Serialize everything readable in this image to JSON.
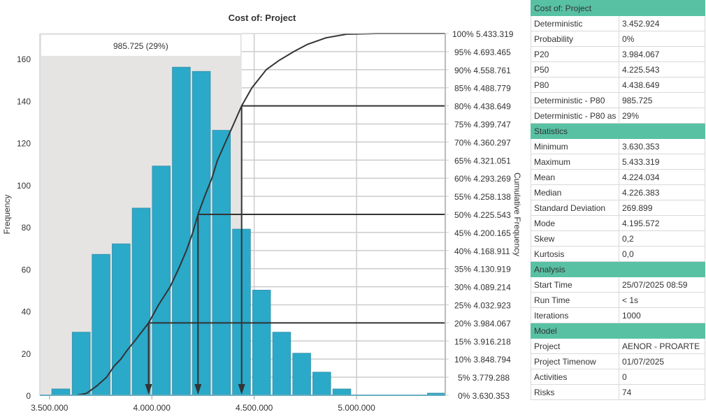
{
  "chart_data": {
    "type": "bar",
    "title": "Cost of: Project",
    "xlabel": "",
    "ylabel": "Frequency",
    "y2label": "Cumulative Frequency",
    "xlim": [
      3452924,
      5433319
    ],
    "ylim": [
      0,
      172
    ],
    "x_ticks": [
      {
        "value": 3500000,
        "label": "3.500.000"
      },
      {
        "value": 4000000,
        "label": "4.000.000"
      },
      {
        "value": 4500000,
        "label": "4.500.000"
      },
      {
        "value": 5000000,
        "label": "5.000.000"
      }
    ],
    "y_ticks": [
      0,
      20,
      40,
      60,
      80,
      100,
      120,
      140,
      160
    ],
    "bins": [
      {
        "center": 3555000,
        "count": 3
      },
      {
        "center": 3655000,
        "count": 30
      },
      {
        "center": 3752000,
        "count": 67
      },
      {
        "center": 3850000,
        "count": 72
      },
      {
        "center": 3948000,
        "count": 89
      },
      {
        "center": 4046000,
        "count": 109
      },
      {
        "center": 4144000,
        "count": 156
      },
      {
        "center": 4242000,
        "count": 154
      },
      {
        "center": 4340000,
        "count": 126
      },
      {
        "center": 4438000,
        "count": 79
      },
      {
        "center": 4536000,
        "count": 50
      },
      {
        "center": 4634000,
        "count": 30
      },
      {
        "center": 4732000,
        "count": 20
      },
      {
        "center": 4830000,
        "count": 11
      },
      {
        "center": 4928000,
        "count": 3
      },
      {
        "center": 5390000,
        "count": 1
      }
    ],
    "bin_width": 98000,
    "cumulative_ticks": [
      {
        "pct": 100,
        "label": "100% 5.433.319"
      },
      {
        "pct": 95,
        "label": "95% 4.693.465"
      },
      {
        "pct": 90,
        "label": "90% 4.558.761"
      },
      {
        "pct": 85,
        "label": "85% 4.488.779"
      },
      {
        "pct": 80,
        "label": "80% 4.438.649"
      },
      {
        "pct": 75,
        "label": "75% 4.399.747"
      },
      {
        "pct": 70,
        "label": "70% 4.360.297"
      },
      {
        "pct": 65,
        "label": "65% 4.321.051"
      },
      {
        "pct": 60,
        "label": "60% 4.293.269"
      },
      {
        "pct": 55,
        "label": "55% 4.258.138"
      },
      {
        "pct": 50,
        "label": "50% 4.225.543"
      },
      {
        "pct": 45,
        "label": "45% 4.200.165"
      },
      {
        "pct": 40,
        "label": "40% 4.168.911"
      },
      {
        "pct": 35,
        "label": "35% 4.130.919"
      },
      {
        "pct": 30,
        "label": "30% 4.089.214"
      },
      {
        "pct": 25,
        "label": "25% 4.032.923"
      },
      {
        "pct": 20,
        "label": "20% 3.984.067"
      },
      {
        "pct": 15,
        "label": "15% 3.916.218"
      },
      {
        "pct": 10,
        "label": "10% 3.848.794"
      },
      {
        "pct": 5,
        "label": "5% 3.779.288"
      },
      {
        "pct": 0,
        "label": "0% 3.630.353"
      }
    ],
    "cumulative_curve": [
      [
        3452924,
        0
      ],
      [
        3630353,
        0
      ],
      [
        3680000,
        0.5
      ],
      [
        3730000,
        2.5
      ],
      [
        3779288,
        5
      ],
      [
        3815000,
        8
      ],
      [
        3848794,
        10
      ],
      [
        3880000,
        12.5
      ],
      [
        3916218,
        15
      ],
      [
        3950000,
        17.5
      ],
      [
        3984067,
        20
      ],
      [
        4032923,
        25
      ],
      [
        4089214,
        30
      ],
      [
        4130919,
        35
      ],
      [
        4168911,
        40
      ],
      [
        4200165,
        45
      ],
      [
        4225543,
        50
      ],
      [
        4258138,
        55
      ],
      [
        4293269,
        60
      ],
      [
        4321051,
        65
      ],
      [
        4360297,
        70
      ],
      [
        4399747,
        75
      ],
      [
        4438649,
        80
      ],
      [
        4488779,
        85
      ],
      [
        4558761,
        90
      ],
      [
        4620000,
        92.5
      ],
      [
        4693465,
        95
      ],
      [
        4760000,
        97
      ],
      [
        4850000,
        98.8
      ],
      [
        4950000,
        99.8
      ],
      [
        5100000,
        100
      ],
      [
        5433319,
        100
      ]
    ],
    "markers": [
      {
        "name": "P20",
        "pct": 20,
        "value": 3984067
      },
      {
        "name": "P50",
        "pct": 50,
        "value": 4225543
      },
      {
        "name": "P80",
        "pct": 80,
        "value": 4438649
      }
    ],
    "shaded_region": {
      "from": 3452924,
      "to": 4438649,
      "label": "985.725 (29%)"
    },
    "grid": true,
    "colors": {
      "bar": "#2ba9c9",
      "bar_border": "#3a8fa6",
      "shade": "#e5e4e3",
      "line": "#333333",
      "grid": "#cccccc",
      "table_header": "#58c1a4"
    }
  },
  "table": {
    "sections": [
      {
        "title": "Cost of: Project",
        "rows": [
          {
            "key": "Deterministic",
            "value": "3.452.924"
          },
          {
            "key": "Probability",
            "value": "0%"
          },
          {
            "key": "P20",
            "value": "3.984.067"
          },
          {
            "key": "P50",
            "value": "4.225.543"
          },
          {
            "key": "P80",
            "value": "4.438.649"
          },
          {
            "key": "Deterministic - P80",
            "value": "985.725"
          },
          {
            "key": "Deterministic - P80 as",
            "value": "29%"
          }
        ]
      },
      {
        "title": "Statistics",
        "rows": [
          {
            "key": "Minimum",
            "value": "3.630.353"
          },
          {
            "key": "Maximum",
            "value": "5.433.319"
          },
          {
            "key": "Mean",
            "value": "4.224.034"
          },
          {
            "key": "Median",
            "value": "4.226.383"
          },
          {
            "key": "Standard Deviation",
            "value": "269.899"
          },
          {
            "key": "Mode",
            "value": "4.195.572"
          },
          {
            "key": "Skew",
            "value": "0,2"
          },
          {
            "key": "Kurtosis",
            "value": "0,0"
          }
        ]
      },
      {
        "title": "Analysis",
        "rows": [
          {
            "key": "Start Time",
            "value": "25/07/2025 08:59"
          },
          {
            "key": "Run Time",
            "value": "< 1s"
          },
          {
            "key": "Iterations",
            "value": "1000"
          }
        ]
      },
      {
        "title": "Model",
        "rows": [
          {
            "key": "Project",
            "value": "AENOR - PROARTE"
          },
          {
            "key": "Project Timenow",
            "value": "01/07/2025"
          },
          {
            "key": "Activities",
            "value": "0"
          },
          {
            "key": "Risks",
            "value": "74"
          }
        ]
      }
    ]
  }
}
